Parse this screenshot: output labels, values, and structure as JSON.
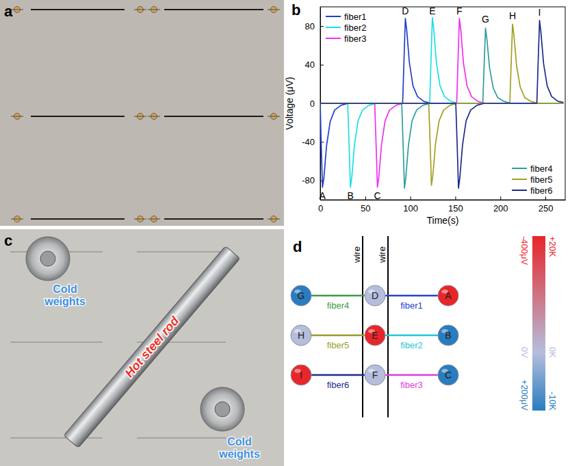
{
  "panel_labels": [
    "a",
    "b",
    "c",
    "d"
  ],
  "photo_c": {
    "labels": [
      {
        "text": "Hot steel rod",
        "color": "#e8302a"
      },
      {
        "text": "Cold weights",
        "color": "#3d8fe0"
      },
      {
        "text": "Cold weights",
        "color": "#3d8fe0"
      }
    ]
  },
  "chart_data": {
    "type": "line",
    "x_label": "Time(s)",
    "y_label": "Voltage (μV)",
    "xlim": [
      0,
      272
    ],
    "xticks": [
      0,
      50,
      100,
      150,
      200,
      250
    ],
    "ylim": [
      -100,
      100
    ],
    "yticks": [
      -80,
      -40,
      0,
      40,
      80
    ],
    "grid": false,
    "legend": "upper left",
    "series": [
      {
        "name": "fiber1",
        "color": "#1f3fd0",
        "x": [
          0,
          1,
          2.5,
          4,
          7,
          11,
          16,
          23,
          31,
          91.5,
          93,
          94.5,
          96,
          99,
          103,
          108,
          115,
          123,
          270
        ],
        "values": [
          0,
          -40,
          -87,
          -78,
          -44,
          -19,
          -7,
          -2,
          0,
          0,
          45,
          88,
          76,
          42,
          18,
          7,
          2,
          0,
          0
        ]
      },
      {
        "name": "fiber2",
        "color": "#19e0e6",
        "x": [
          0,
          30.5,
          32,
          33.5,
          35,
          38,
          42,
          47,
          54,
          62,
          121.5,
          123,
          124.5,
          126,
          129,
          133,
          138,
          145,
          153,
          270
        ],
        "values": [
          0,
          0,
          -42,
          -87,
          -77,
          -43,
          -18,
          -7,
          -2,
          0,
          0,
          45,
          89,
          77,
          42,
          18,
          7,
          2,
          0,
          0
        ]
      },
      {
        "name": "fiber3",
        "color": "#f02ef0",
        "x": [
          0,
          60.5,
          62,
          63.5,
          65,
          68,
          72,
          77,
          84,
          92,
          151.5,
          153,
          154.5,
          156,
          159,
          163,
          168,
          175,
          183,
          270
        ],
        "values": [
          0,
          0,
          -42,
          -87,
          -77,
          -43,
          -18,
          -7,
          -2,
          0,
          0,
          45,
          88,
          77,
          42,
          18,
          7,
          2,
          0,
          0
        ]
      },
      {
        "name": "fiber4",
        "color": "#2e9c9c",
        "x": [
          0,
          90.5,
          92,
          93.5,
          95,
          98,
          102,
          107,
          114,
          122,
          180.5,
          182,
          183.5,
          185,
          188,
          192,
          197,
          204,
          212,
          270
        ],
        "values": [
          0,
          0,
          -42,
          -88,
          -77,
          -43,
          -18,
          -7,
          -2,
          0,
          0,
          40,
          78,
          67,
          37,
          16,
          6,
          2,
          0,
          0
        ]
      },
      {
        "name": "fiber5",
        "color": "#a0a020",
        "x": [
          0,
          120.5,
          122,
          123.5,
          125,
          128,
          132,
          137,
          144,
          152,
          210.5,
          212,
          213.5,
          215,
          218,
          222,
          227,
          234,
          242,
          270
        ],
        "values": [
          0,
          0,
          -41,
          -85,
          -75,
          -42,
          -18,
          -7,
          -2,
          0,
          0,
          42,
          82,
          71,
          39,
          17,
          6,
          2,
          0,
          0
        ]
      },
      {
        "name": "fiber6",
        "color": "#1c2a8c",
        "x": [
          0,
          150.5,
          152,
          153.5,
          155,
          158,
          162,
          167,
          174,
          182,
          240.5,
          242,
          243.5,
          245,
          248,
          252,
          257,
          264,
          270
        ],
        "values": [
          0,
          0,
          -42,
          -88,
          -77,
          -43,
          -18,
          -7,
          -2,
          0,
          0,
          44,
          86,
          74,
          41,
          18,
          7,
          2,
          1
        ]
      }
    ],
    "annotations": [
      {
        "text": "A",
        "x": 2.5,
        "y": -95.5
      },
      {
        "text": "B",
        "x": 33.5,
        "y": -95.5
      },
      {
        "text": "C",
        "x": 63.5,
        "y": -95.5
      },
      {
        "text": "D",
        "x": 94.5,
        "y": 95.5
      },
      {
        "text": "E",
        "x": 124.5,
        "y": 96
      },
      {
        "text": "F",
        "x": 154.5,
        "y": 96
      },
      {
        "text": "G",
        "x": 183.5,
        "y": 87
      },
      {
        "text": "H",
        "x": 213.5,
        "y": 91
      },
      {
        "text": "I",
        "x": 243.5,
        "y": 94.5
      }
    ]
  },
  "diagram": {
    "wire_labels": [
      "wire",
      "wire"
    ],
    "nodes": [
      {
        "label": "G",
        "value": -10
      },
      {
        "label": "D",
        "value": 0
      },
      {
        "label": "A",
        "value": 20
      },
      {
        "label": "H",
        "value": 0
      },
      {
        "label": "E",
        "value": 20
      },
      {
        "label": "B",
        "value": -10
      },
      {
        "label": "I",
        "value": 20
      },
      {
        "label": "F",
        "value": 0
      },
      {
        "label": "C",
        "value": -10
      }
    ],
    "edges": [
      {
        "from": "G",
        "to": "D",
        "name": "fiber4",
        "color": "#3f9a3f"
      },
      {
        "from": "D",
        "to": "A",
        "name": "fiber1",
        "color": "#2542d0"
      },
      {
        "from": "H",
        "to": "E",
        "name": "fiber5",
        "color": "#9b9b2a"
      },
      {
        "from": "E",
        "to": "B",
        "name": "fiber2",
        "color": "#1fc6d8"
      },
      {
        "from": "I",
        "to": "F",
        "name": "fiber6",
        "color": "#1c2a8c"
      },
      {
        "from": "F",
        "to": "C",
        "name": "fiber3",
        "color": "#e03be0"
      }
    ],
    "colorbar": {
      "range": [
        -10,
        20
      ],
      "ticks": [
        {
          "value": -10,
          "label": "-10K"
        },
        {
          "value": 0,
          "label": "0K"
        },
        {
          "value": 20,
          "label": "+20K"
        }
      ],
      "colors": [
        "#2a7cc0",
        "#b4bedc",
        "#e8262a"
      ],
      "voltage_range": [
        -400,
        200
      ],
      "voltage_ticks": [
        {
          "value": -400,
          "label": "-400μV"
        },
        {
          "value": 0,
          "label": "0V"
        },
        {
          "value": 200,
          "label": "+200μV"
        }
      ]
    }
  }
}
